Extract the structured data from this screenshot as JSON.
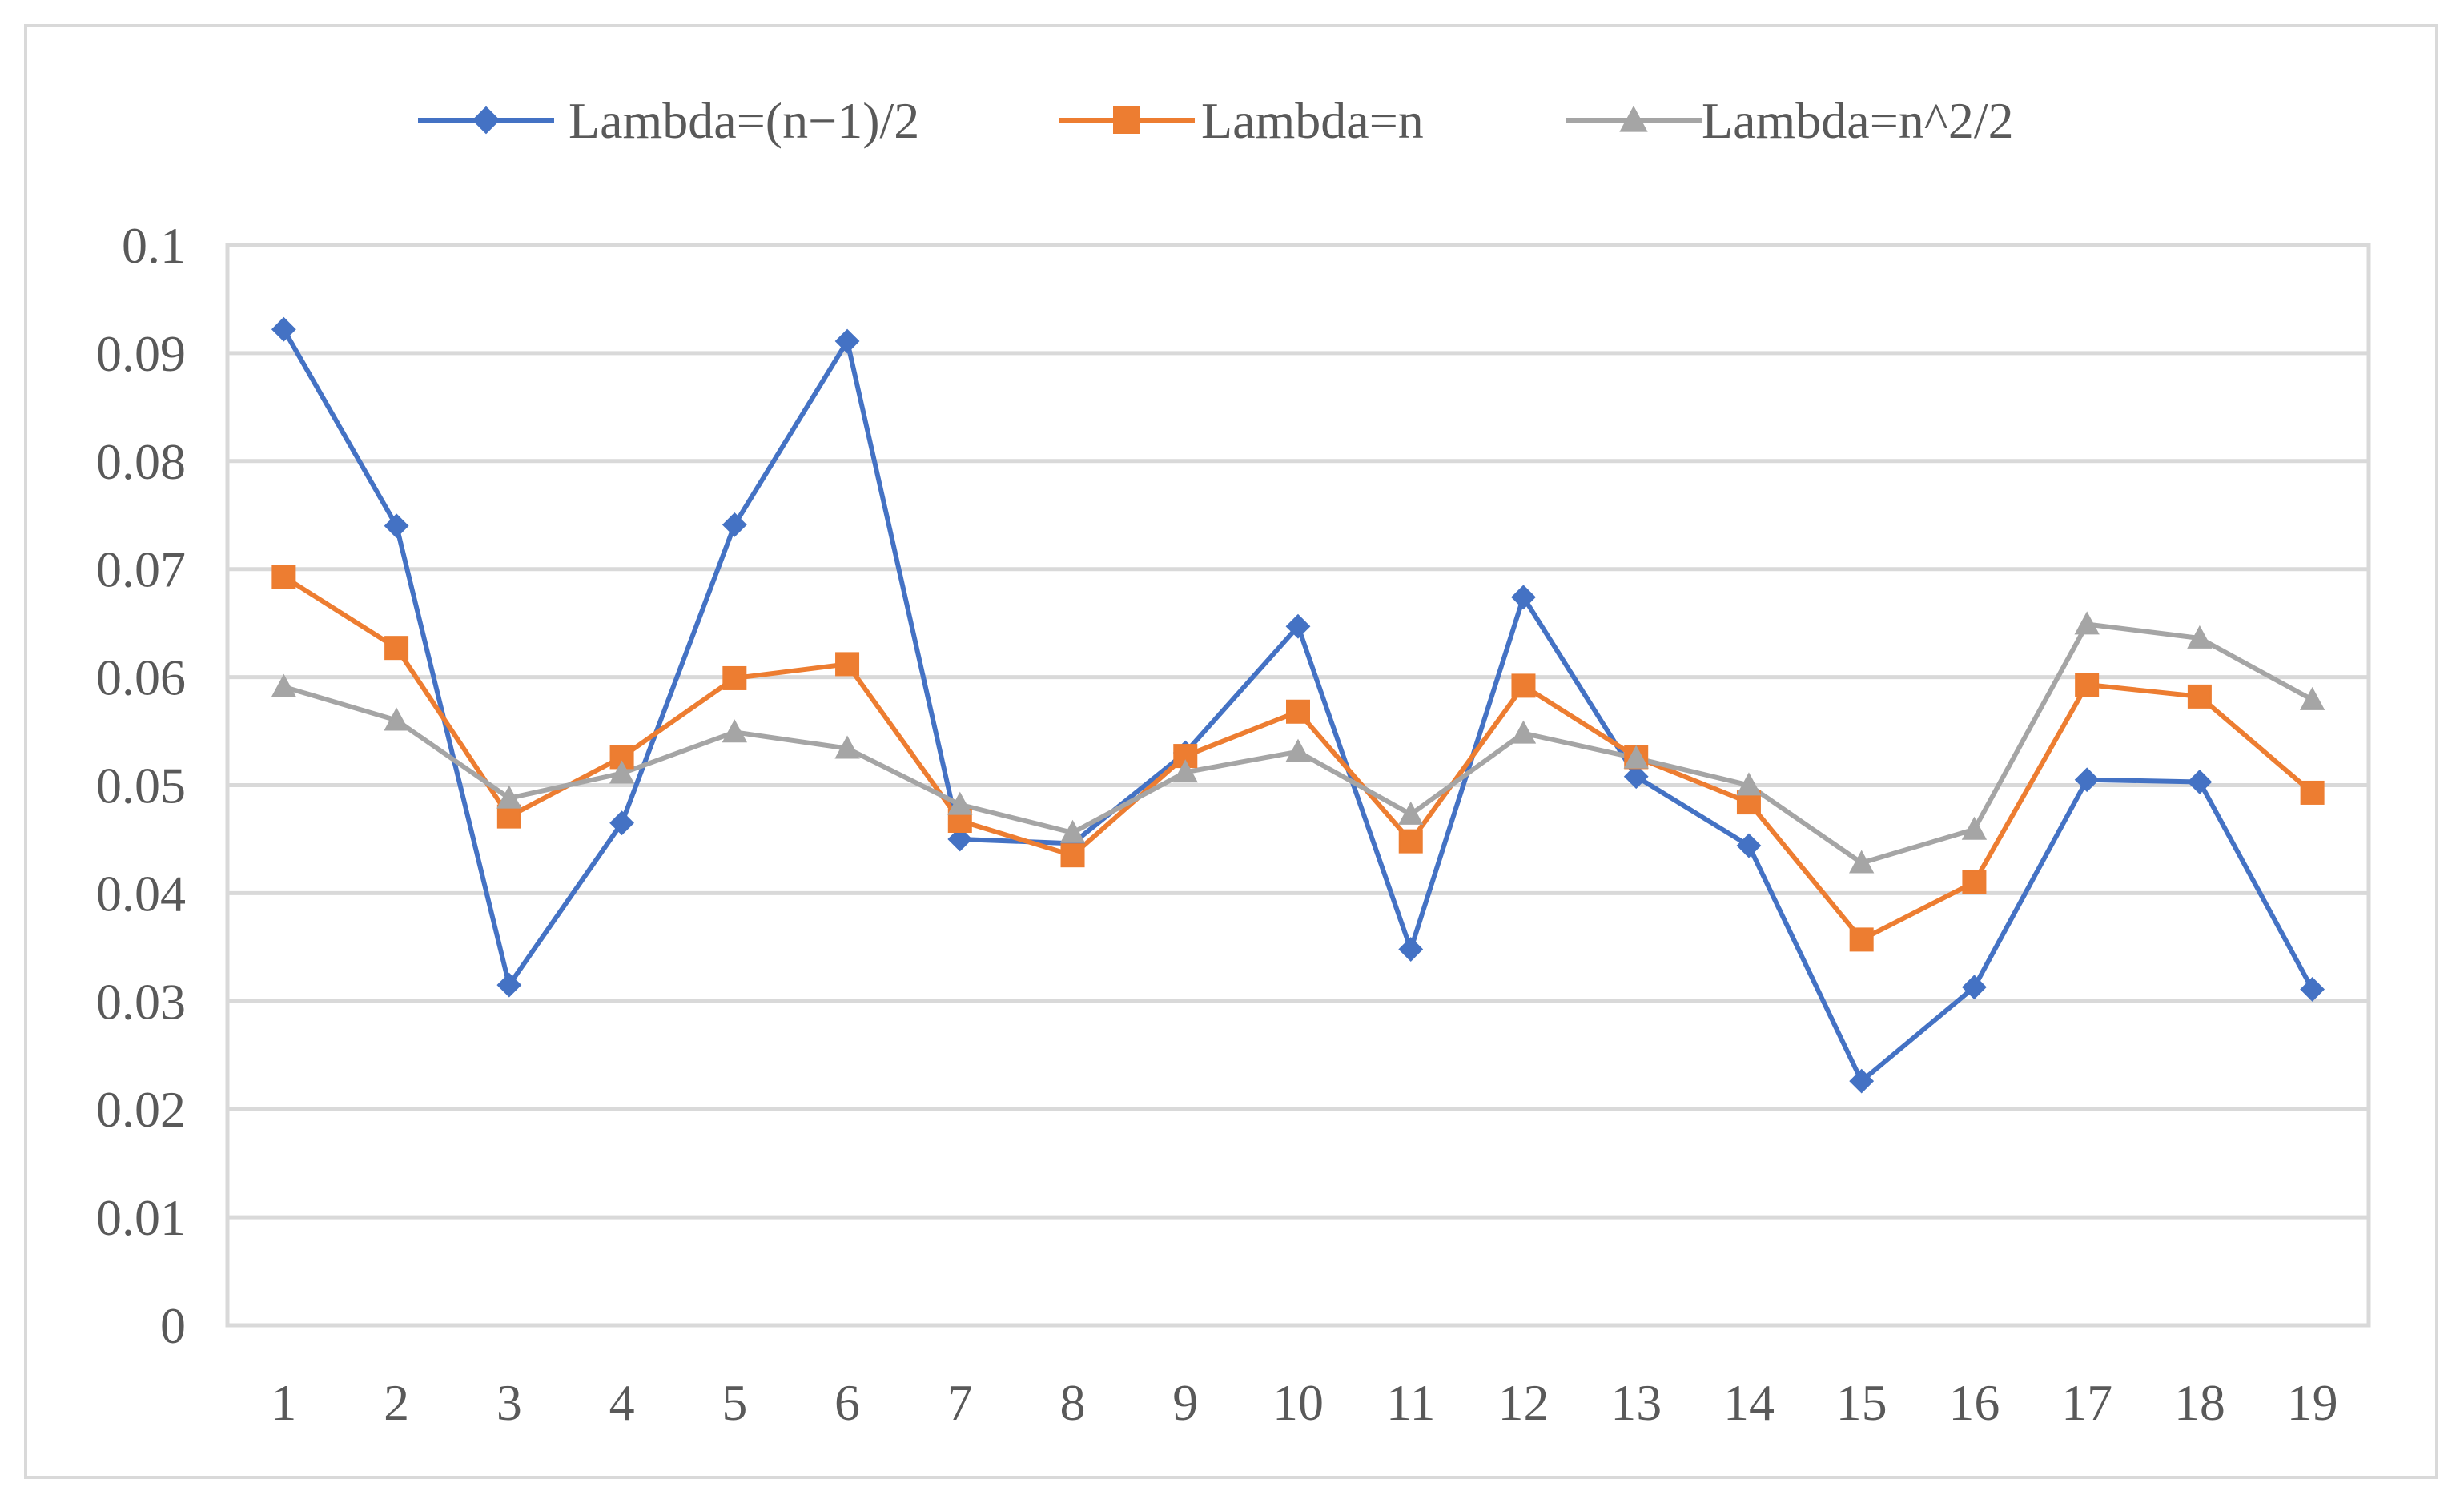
{
  "chart_data": {
    "type": "line",
    "title": "",
    "xlabel": "",
    "ylabel": "",
    "categories": [
      "1",
      "2",
      "3",
      "4",
      "5",
      "6",
      "7",
      "8",
      "9",
      "10",
      "11",
      "12",
      "13",
      "14",
      "15",
      "16",
      "17",
      "18",
      "19"
    ],
    "ylim": [
      0,
      0.1
    ],
    "yticks": [
      "0",
      "0.01",
      "0.02",
      "0.03",
      "0.04",
      "0.05",
      "0.06",
      "0.07",
      "0.08",
      "0.09",
      "0.1"
    ],
    "grid": true,
    "legend_position": "top",
    "series": [
      {
        "name": "Lambda=(n−1)/2",
        "color": "#4472c4",
        "marker": "diamond",
        "values": [
          0.0922,
          0.074,
          0.0315,
          0.0465,
          0.0741,
          0.0911,
          0.045,
          0.0446,
          0.053,
          0.0647,
          0.0348,
          0.0674,
          0.0508,
          0.0444,
          0.0226,
          0.0313,
          0.0505,
          0.0503,
          0.0311
        ]
      },
      {
        "name": "Lambda=n",
        "color": "#ed7d31",
        "marker": "square",
        "values": [
          0.0693,
          0.0627,
          0.0471,
          0.0526,
          0.0599,
          0.0612,
          0.0467,
          0.0435,
          0.0527,
          0.0568,
          0.0448,
          0.0592,
          0.0526,
          0.0484,
          0.0357,
          0.041,
          0.0593,
          0.0582,
          0.0493
        ]
      },
      {
        "name": "Lambda=n^2/2",
        "color": "#a5a5a5",
        "marker": "triangle",
        "values": [
          0.0591,
          0.056,
          0.0488,
          0.0511,
          0.0549,
          0.0534,
          0.0482,
          0.0456,
          0.0512,
          0.0531,
          0.0473,
          0.0548,
          0.0525,
          0.05,
          0.0428,
          0.0459,
          0.0649,
          0.0636,
          0.0579
        ]
      }
    ]
  }
}
